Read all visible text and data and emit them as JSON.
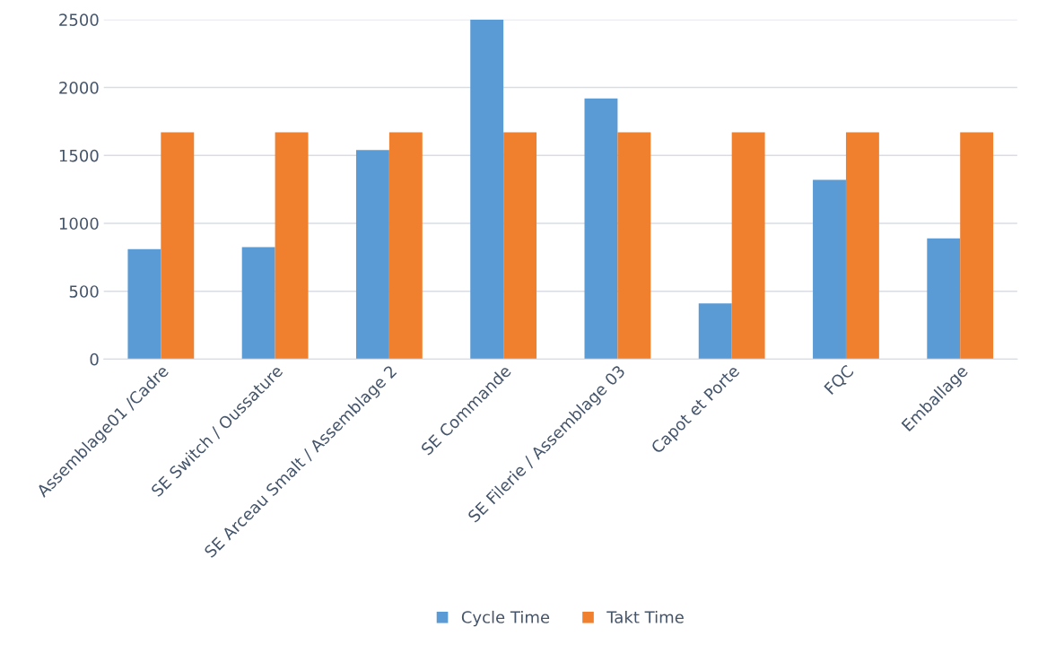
{
  "chart_data": {
    "type": "bar",
    "categories": [
      "Assemblage01 /Cadre",
      "SE Switch / Oussature",
      "SE Arceau Smalt / Assemblage 2",
      "SE Commande",
      "SE Filerie / Assemblage 03",
      "Capot et Porte",
      "FQC",
      "Emballage"
    ],
    "series": [
      {
        "name": "Cycle Time",
        "color": "#5b9bd5",
        "values": [
          810,
          825,
          1540,
          2500,
          1920,
          410,
          1320,
          890
        ]
      },
      {
        "name": "Takt Time",
        "color": "#f07f2e",
        "values": [
          1670,
          1670,
          1670,
          1670,
          1670,
          1670,
          1670,
          1670
        ]
      }
    ],
    "ylim": [
      0,
      2500
    ],
    "yticks": [
      0,
      500,
      1000,
      1500,
      2000,
      2500
    ],
    "grid": "y",
    "legend": "bottom"
  }
}
